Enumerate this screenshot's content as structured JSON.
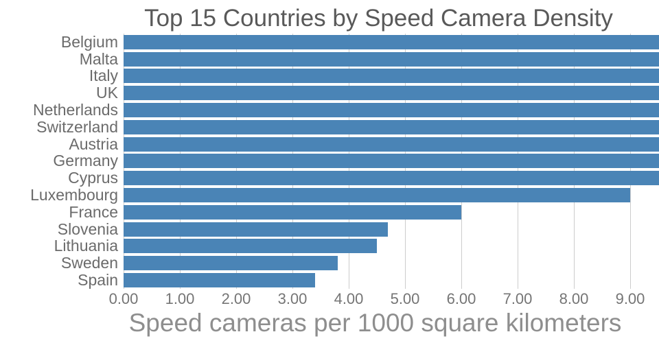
{
  "chart_data": {
    "type": "bar",
    "orientation": "horizontal",
    "title": "Top 15 Countries by Speed Camera Density",
    "xlabel": "Speed cameras per 1000 square kilometers",
    "ylabel": "",
    "categories": [
      "Belgium",
      "Malta",
      "Italy",
      "UK",
      "Netherlands",
      "Switzerland",
      "Austria",
      "Germany",
      "Cyprus",
      "Luxembourg",
      "France",
      "Slovenia",
      "Lithuania",
      "Sweden",
      "Spain"
    ],
    "series": [
      {
        "name": "Speed cameras per 1000 square kilometers",
        "values": [
          9.5,
          9.5,
          9.5,
          9.5,
          9.5,
          9.5,
          9.5,
          9.5,
          9.5,
          9.0,
          6.0,
          4.7,
          4.5,
          3.8,
          3.4
        ]
      }
    ],
    "bars": [
      {
        "label": "Belgium",
        "value": 9.5,
        "clipped": true
      },
      {
        "label": "Malta",
        "value": 9.5,
        "clipped": true
      },
      {
        "label": "Italy",
        "value": 9.5,
        "clipped": true
      },
      {
        "label": "UK",
        "value": 9.5,
        "clipped": true
      },
      {
        "label": "Netherlands",
        "value": 9.5,
        "clipped": true
      },
      {
        "label": "Switzerland",
        "value": 9.5,
        "clipped": true
      },
      {
        "label": "Austria",
        "value": 9.5,
        "clipped": true
      },
      {
        "label": "Germany",
        "value": 9.5,
        "clipped": true
      },
      {
        "label": "Cyprus",
        "value": 9.5,
        "clipped": true
      },
      {
        "label": "Luxembourg",
        "value": 9.0,
        "clipped": false
      },
      {
        "label": "France",
        "value": 6.0,
        "clipped": false
      },
      {
        "label": "Slovenia",
        "value": 4.7,
        "clipped": false
      },
      {
        "label": "Lithuania",
        "value": 4.5,
        "clipped": false
      },
      {
        "label": "Sweden",
        "value": 3.8,
        "clipped": false
      },
      {
        "label": "Spain",
        "value": 3.4,
        "clipped": false
      }
    ],
    "bars_clipped_at_right_edge": [
      "Belgium",
      "Malta",
      "Italy",
      "UK",
      "Netherlands",
      "Switzerland",
      "Austria",
      "Germany",
      "Cyprus"
    ],
    "x_ticks": [
      "0.00",
      "1.00",
      "2.00",
      "3.00",
      "4.00",
      "5.00",
      "6.00",
      "7.00",
      "8.00",
      "9.00"
    ],
    "x_tick_values": [
      0,
      1,
      2,
      3,
      4,
      5,
      6,
      7,
      8,
      9
    ],
    "xlim": [
      0,
      9.5
    ],
    "grid": "vertical",
    "legend": "none",
    "colors": {
      "bar": "#4a84b6",
      "gridline": "#cccccc",
      "title_text": "#595959",
      "category_text": "#6b6b6b",
      "tick_text": "#757575",
      "xlabel_text": "#8e8e8e",
      "background": "#ffffff"
    }
  }
}
